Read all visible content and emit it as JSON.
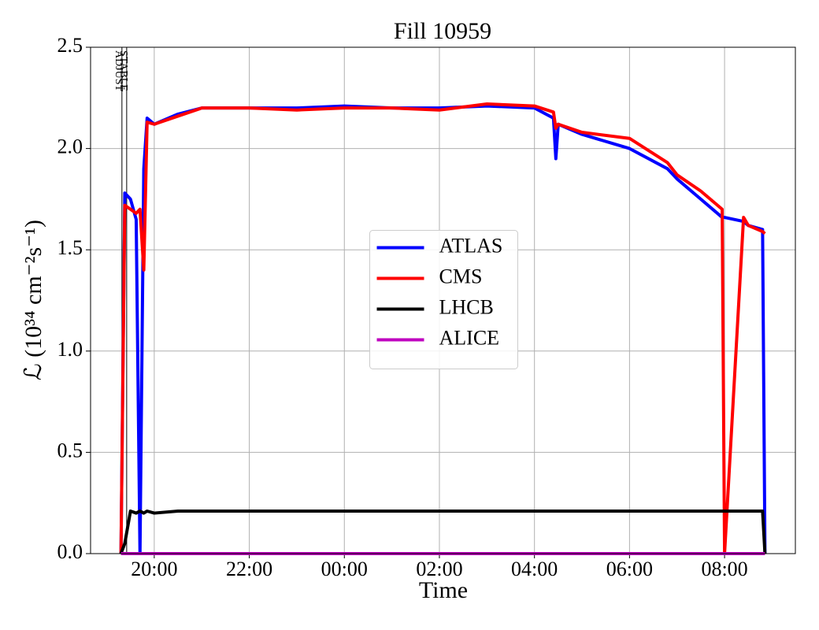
{
  "chart_data": {
    "type": "line",
    "title": "Fill 10959",
    "xlabel": "Time",
    "ylabel": "ℒ (10³⁴ cm⁻²s⁻¹)",
    "x": [
      19.3,
      19.38,
      19.5,
      19.62,
      19.7,
      19.78,
      19.85,
      20.0,
      20.5,
      21,
      22,
      23,
      24,
      25,
      26,
      27,
      28,
      28.4,
      28.45,
      28.5,
      29,
      30,
      30.8,
      31,
      31.5,
      31.95,
      32.0,
      32.4,
      32.5,
      32.8,
      32.85
    ],
    "series": [
      {
        "name": "ATLAS",
        "color": "#0000ff",
        "values": [
          0,
          1.78,
          1.75,
          1.65,
          0,
          1.9,
          2.15,
          2.12,
          2.17,
          2.2,
          2.2,
          2.2,
          2.21,
          2.2,
          2.2,
          2.21,
          2.2,
          2.15,
          1.95,
          2.12,
          2.07,
          2.0,
          1.9,
          1.85,
          1.75,
          1.66,
          1.66,
          1.64,
          1.62,
          1.6,
          0
        ]
      },
      {
        "name": "CMS",
        "color": "#ff0000",
        "values": [
          0,
          1.72,
          1.7,
          1.68,
          1.7,
          1.4,
          2.13,
          2.12,
          2.16,
          2.2,
          2.2,
          2.19,
          2.2,
          2.2,
          2.19,
          2.22,
          2.21,
          2.18,
          2.1,
          2.12,
          2.08,
          2.05,
          1.93,
          1.87,
          1.79,
          1.7,
          0,
          1.66,
          1.62,
          1.59,
          1.58
        ]
      },
      {
        "name": "LHCB",
        "color": "#000000",
        "values": [
          0,
          0.05,
          0.21,
          0.2,
          0.21,
          0.2,
          0.21,
          0.2,
          0.21,
          0.21,
          0.21,
          0.21,
          0.21,
          0.21,
          0.21,
          0.21,
          0.21,
          0.21,
          0.21,
          0.21,
          0.21,
          0.21,
          0.21,
          0.21,
          0.21,
          0.21,
          0.21,
          0.21,
          0.21,
          0.21,
          0
        ]
      },
      {
        "name": "ALICE",
        "color": "#bf00bf",
        "values": [
          0,
          0,
          0,
          0,
          0,
          0,
          0,
          0,
          0,
          0,
          0,
          0,
          0,
          0,
          0,
          0,
          0,
          0,
          0,
          0,
          0,
          0,
          0,
          0,
          0,
          0,
          0,
          0,
          0,
          0,
          0
        ]
      }
    ],
    "xlim": [
      18.66,
      33.49
    ],
    "xticks": [
      {
        "value": 20,
        "label": "20:00"
      },
      {
        "value": 22,
        "label": "22:00"
      },
      {
        "value": 24,
        "label": "00:00"
      },
      {
        "value": 26,
        "label": "02:00"
      },
      {
        "value": 28,
        "label": "04:00"
      },
      {
        "value": 30,
        "label": "06:00"
      },
      {
        "value": 32,
        "label": "08:00"
      }
    ],
    "ylim": [
      0,
      2.5
    ],
    "yticks": [
      {
        "value": 0,
        "label": "0.0"
      },
      0.5,
      {
        "value": 1,
        "label": "1.0"
      },
      1.5,
      {
        "value": 2,
        "label": "2.0"
      },
      2.5
    ],
    "annotations": [
      {
        "x": 19.32,
        "text": "ADJUST"
      },
      {
        "x": 19.42,
        "text": "STABLE"
      }
    ],
    "grid": true,
    "legend": "center"
  }
}
